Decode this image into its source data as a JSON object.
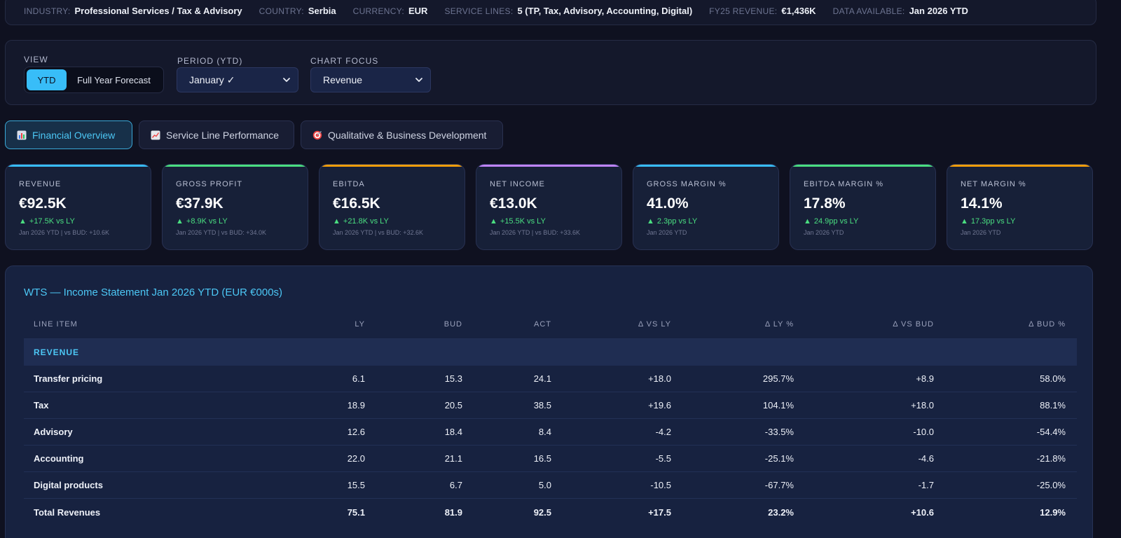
{
  "info_bar": [
    {
      "key": "INDUSTRY:",
      "value": "Professional Services / Tax & Advisory"
    },
    {
      "key": "COUNTRY:",
      "value": "Serbia"
    },
    {
      "key": "CURRENCY:",
      "value": "EUR"
    },
    {
      "key": "SERVICE LINES:",
      "value": "5 (TP, Tax, Advisory, Accounting, Digital)"
    },
    {
      "key": "FY25 REVENUE:",
      "value": "€1,436K"
    },
    {
      "key": "DATA AVAILABLE:",
      "value": "Jan 2026 YTD"
    }
  ],
  "controls": {
    "view_label": "VIEW",
    "view_options": [
      "YTD",
      "Full Year Forecast"
    ],
    "period_label": "PERIOD (YTD)",
    "period_value": "January ✓",
    "focus_label": "CHART FOCUS",
    "focus_value": "Revenue"
  },
  "tabs": [
    {
      "label": "Financial Overview",
      "icon": "bar-chart-icon",
      "active": true
    },
    {
      "label": "Service Line Performance",
      "icon": "trend-chart-icon",
      "active": false
    },
    {
      "label": "Qualitative & Business Development",
      "icon": "target-icon",
      "active": false
    }
  ],
  "kpis": [
    {
      "label": "REVENUE",
      "value": "€92.5K",
      "delta": "+17.5K vs LY",
      "sub": "Jan 2026 YTD | vs BUD: +10.6K",
      "color": "#38bdf8"
    },
    {
      "label": "GROSS PROFIT",
      "value": "€37.9K",
      "delta": "+8.9K vs LY",
      "sub": "Jan 2026 YTD | vs BUD: +34.0K",
      "color": "#4ade80"
    },
    {
      "label": "EBITDA",
      "value": "€16.5K",
      "delta": "+21.8K vs LY",
      "sub": "Jan 2026 YTD | vs BUD: +32.6K",
      "color": "#f59e0b"
    },
    {
      "label": "NET INCOME",
      "value": "€13.0K",
      "delta": "+15.5K vs LY",
      "sub": "Jan 2026 YTD | vs BUD: +33.6K",
      "color": "#c084fc"
    },
    {
      "label": "GROSS MARGIN %",
      "value": "41.0%",
      "delta": "2.3pp vs LY",
      "sub": "Jan 2026 YTD",
      "color": "#38bdf8"
    },
    {
      "label": "EBITDA MARGIN %",
      "value": "17.8%",
      "delta": "24.9pp vs LY",
      "sub": "Jan 2026 YTD",
      "color": "#4ade80"
    },
    {
      "label": "NET MARGIN %",
      "value": "14.1%",
      "delta": "17.3pp vs LY",
      "sub": "Jan 2026 YTD",
      "color": "#f59e0b"
    }
  ],
  "kpi_arrow": "▲",
  "statement": {
    "title": "WTS — Income Statement Jan 2026 YTD (EUR €000s)",
    "columns": [
      "LINE ITEM",
      "LY",
      "BUD",
      "ACT",
      "Δ VS LY",
      "Δ LY %",
      "Δ VS BUD",
      "Δ BUD %"
    ],
    "section": "REVENUE",
    "rows": [
      [
        "Transfer pricing",
        "6.1",
        "15.3",
        "24.1",
        "+18.0",
        "295.7%",
        "+8.9",
        "58.0%"
      ],
      [
        "Tax",
        "18.9",
        "20.5",
        "38.5",
        "+19.6",
        "104.1%",
        "+18.0",
        "88.1%"
      ],
      [
        "Advisory",
        "12.6",
        "18.4",
        "8.4",
        "-4.2",
        "-33.5%",
        "-10.0",
        "-54.4%"
      ],
      [
        "Accounting",
        "22.0",
        "21.1",
        "16.5",
        "-5.5",
        "-25.1%",
        "-4.6",
        "-21.8%"
      ],
      [
        "Digital products",
        "15.5",
        "6.7",
        "5.0",
        "-10.5",
        "-67.7%",
        "-1.7",
        "-25.0%"
      ]
    ],
    "total": [
      "Total Revenues",
      "75.1",
      "81.9",
      "92.5",
      "+17.5",
      "23.2%",
      "+10.6",
      "12.9%"
    ]
  }
}
